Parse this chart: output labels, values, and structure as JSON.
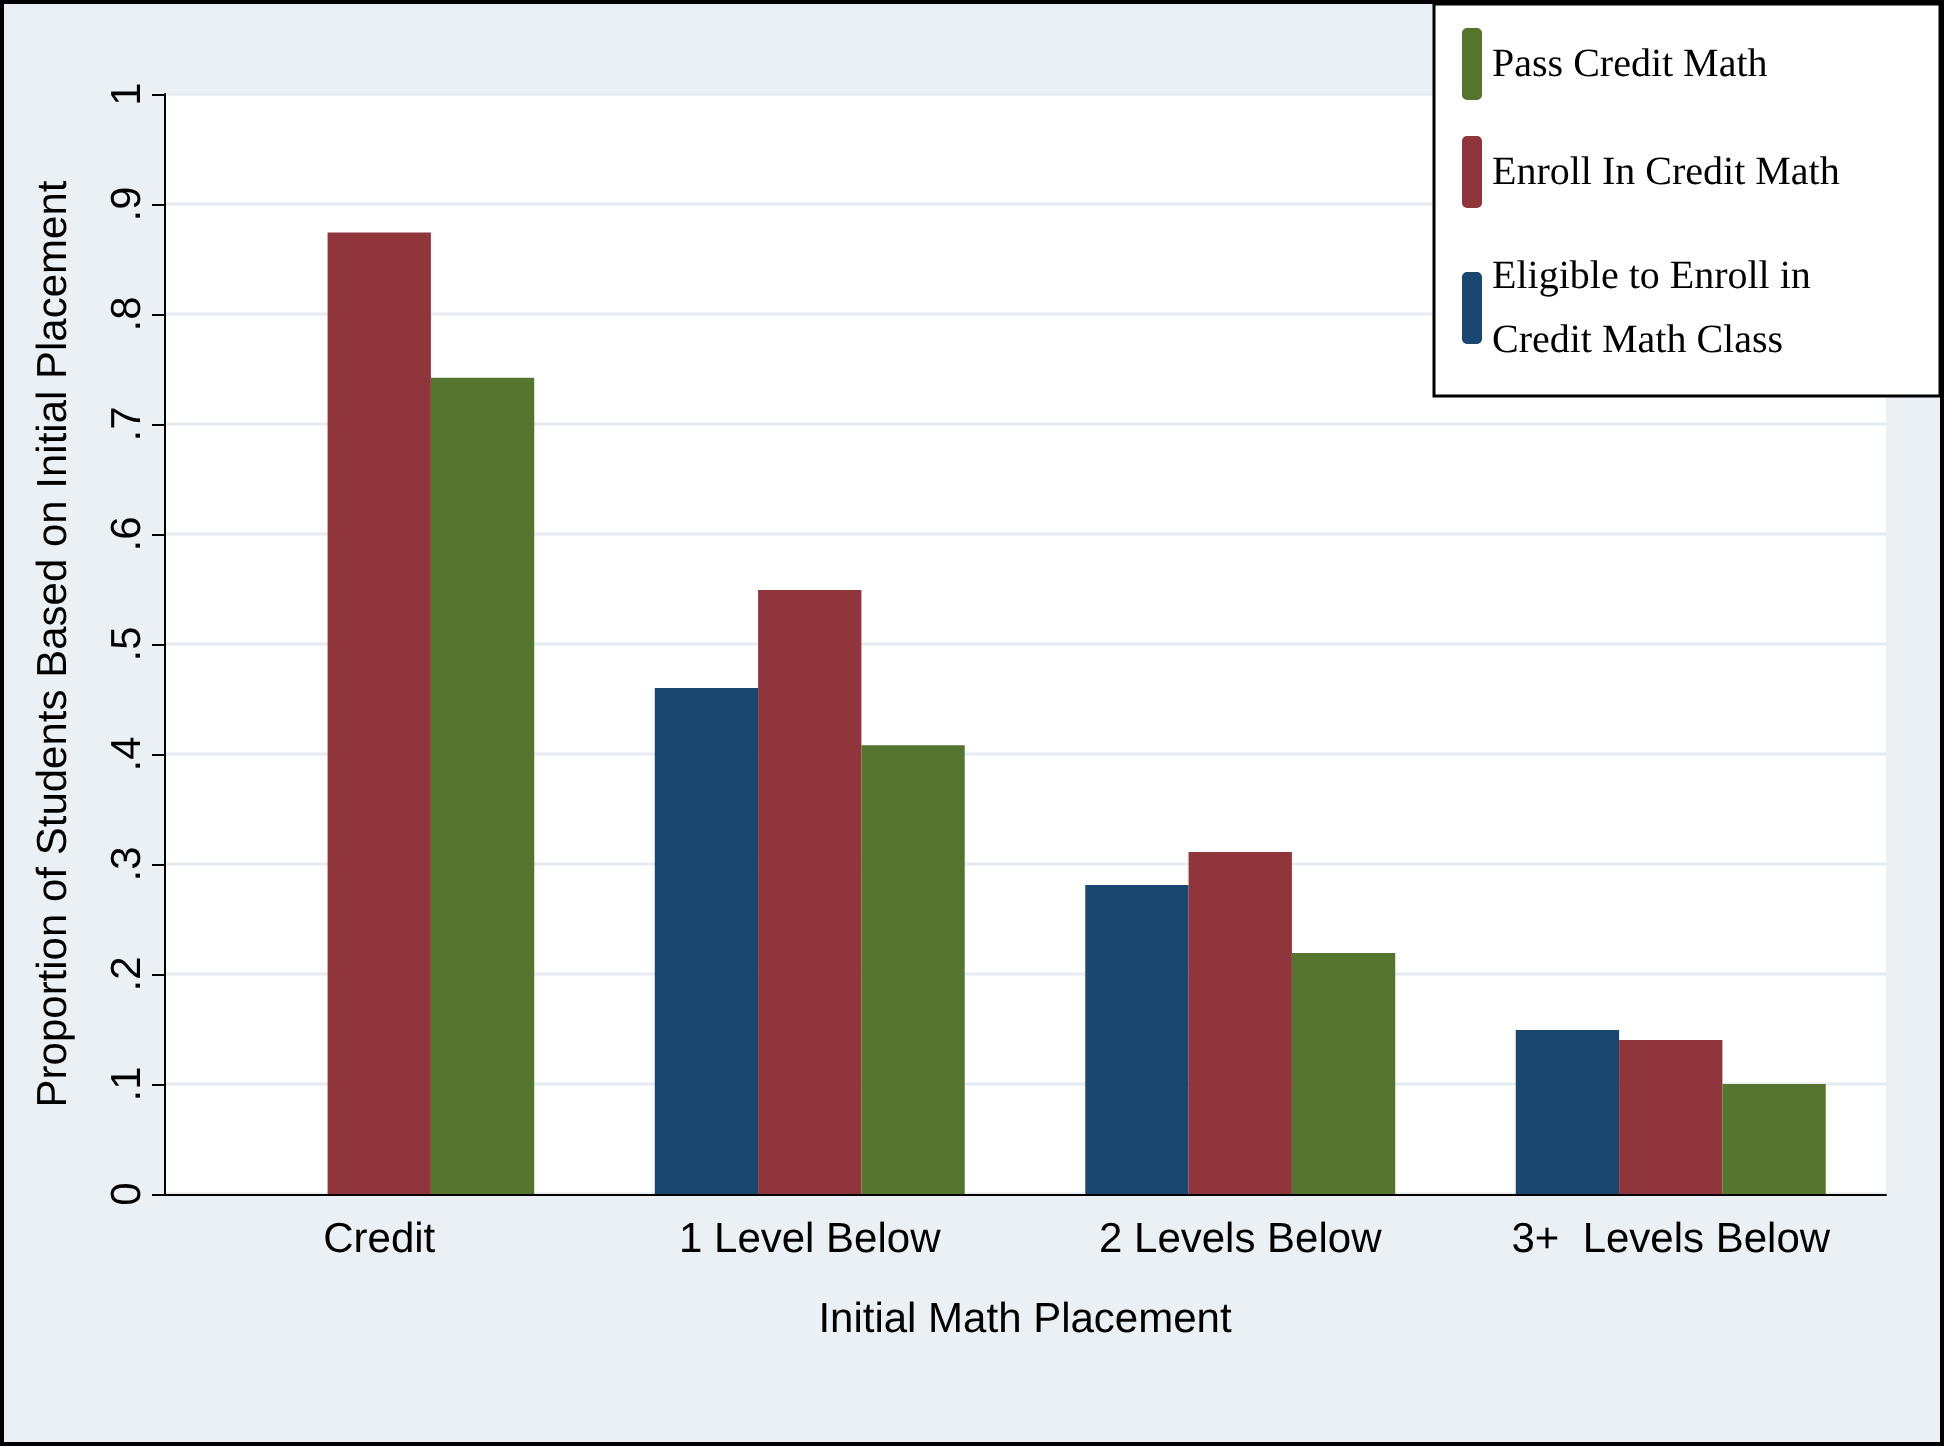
{
  "chart_data": {
    "type": "bar",
    "xlabel": "Initial Math Placement",
    "ylabel": "Proportion of Students Based on Initial Placement",
    "categories": [
      "Credit",
      "1 Level Below",
      "2 Levels Below",
      "3+  Levels Below"
    ],
    "series": [
      {
        "name": "Eligible to Enroll in Credit Math Class",
        "color": "#1a476f",
        "values": [
          null,
          0.46,
          0.281,
          0.149
        ]
      },
      {
        "name": "Enroll In Credit Math",
        "color": "#90353b",
        "values": [
          0.874,
          0.549,
          0.311,
          0.14
        ]
      },
      {
        "name": "Pass Credit Math",
        "color": "#55752f",
        "values": [
          0.742,
          0.408,
          0.219,
          0.1
        ]
      }
    ],
    "ylim": [
      0,
      1
    ],
    "yticks": [
      0,
      {
        "value": 0.1,
        "label": ".1"
      },
      {
        "value": 0.2,
        "label": ".2"
      },
      {
        "value": 0.3,
        "label": ".3"
      },
      {
        "value": 0.4,
        "label": ".4"
      },
      {
        "value": 0.5,
        "label": ".5"
      },
      {
        "value": 0.6,
        "label": ".6"
      },
      {
        "value": 0.7,
        "label": ".7"
      },
      {
        "value": 0.8,
        "label": ".8"
      },
      {
        "value": 0.9,
        "label": ".9"
      },
      1
    ],
    "grid": "y",
    "legend": "top right"
  }
}
